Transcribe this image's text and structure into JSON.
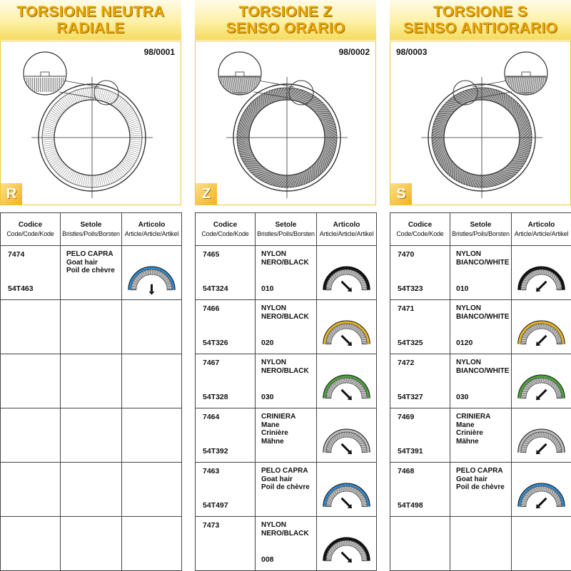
{
  "columns": [
    {
      "title_line1": "TORSIONE NEUTRA",
      "title_line2": "RADIALE",
      "code": "98/0001",
      "letter": "R",
      "diagram": "radial",
      "headers": {
        "codice": "Codice",
        "codice_sub": "Code/Code/Kode",
        "setole": "Setole",
        "setole_sub": "Bristles/Poils/Borsten",
        "articolo": "Articolo",
        "articolo_sub": "Article/Article/Artikel"
      },
      "rows": [
        {
          "code": "7474",
          "code2": "54T463",
          "l1": "PELO CAPRA",
          "l2": "Goat hair",
          "l3": "Poil de chèvre",
          "l4": "",
          "num": "",
          "color": "#2f86c8",
          "arrow": "down"
        },
        {
          "code": "",
          "code2": "",
          "l1": "",
          "l2": "",
          "l3": "",
          "l4": "",
          "num": "",
          "color": "",
          "arrow": ""
        },
        {
          "code": "",
          "code2": "",
          "l1": "",
          "l2": "",
          "l3": "",
          "l4": "",
          "num": "",
          "color": "",
          "arrow": ""
        },
        {
          "code": "",
          "code2": "",
          "l1": "",
          "l2": "",
          "l3": "",
          "l4": "",
          "num": "",
          "color": "",
          "arrow": ""
        },
        {
          "code": "",
          "code2": "",
          "l1": "",
          "l2": "",
          "l3": "",
          "l4": "",
          "num": "",
          "color": "",
          "arrow": ""
        },
        {
          "code": "",
          "code2": "",
          "l1": "",
          "l2": "",
          "l3": "",
          "l4": "",
          "num": "",
          "color": "",
          "arrow": ""
        }
      ]
    },
    {
      "title_line1": "TORSIONE Z",
      "title_line2": "SENSO ORARIO",
      "code": "98/0002",
      "letter": "Z",
      "diagram": "z",
      "headers": {
        "codice": "Codice",
        "codice_sub": "Code/Code/Kode",
        "setole": "Setole",
        "setole_sub": "Bristles/Poils/Borsten",
        "articolo": "Articolo",
        "articolo_sub": "Article/Article/Artikel"
      },
      "rows": [
        {
          "code": "7465",
          "code2": "54T324",
          "l1": "NYLON",
          "l2": "NERO/BLACK",
          "l3": "",
          "l4": "",
          "num": "010",
          "color": "#111111",
          "arrow": "z"
        },
        {
          "code": "7466",
          "code2": "54T326",
          "l1": "NYLON",
          "l2": "NERO/BLACK",
          "l3": "",
          "l4": "",
          "num": "020",
          "color": "#e6b422",
          "arrow": "z"
        },
        {
          "code": "7467",
          "code2": "54T328",
          "l1": "NYLON",
          "l2": "NERO/BLACK",
          "l3": "",
          "l4": "",
          "num": "030",
          "color": "#4aa13a",
          "arrow": "z"
        },
        {
          "code": "7464",
          "code2": "54T392",
          "l1": "CRINIERA",
          "l2": "Mane",
          "l3": "Crinière",
          "l4": "Mähne",
          "num": "",
          "color": "#bbbbbb",
          "arrow": "z"
        },
        {
          "code": "7463",
          "code2": "54T497",
          "l1": "PELO CAPRA",
          "l2": "Goat hair",
          "l3": "Poil de chèvre",
          "l4": "",
          "num": "",
          "color": "#2f86c8",
          "arrow": "z"
        },
        {
          "code": "7473",
          "code2": "",
          "l1": "NYLON",
          "l2": "NERO/BLACK",
          "l3": "",
          "l4": "",
          "num": "008",
          "color": "#111111",
          "arrow": "z"
        }
      ]
    },
    {
      "title_line1": "TORSIONE S",
      "title_line2": "SENSO ANTIORARIO",
      "code": "98/0003",
      "letter": "S",
      "diagram": "s",
      "headers": {
        "codice": "Codice",
        "codice_sub": "Code/Code/Kode",
        "setole": "Setole",
        "setole_sub": "Bristles/Poils/Borsten",
        "articolo": "Articolo",
        "articolo_sub": "Article/Article/Artikel"
      },
      "rows": [
        {
          "code": "7470",
          "code2": "54T323",
          "l1": "NYLON",
          "l2": "BIANCO/WHITE",
          "l3": "",
          "l4": "",
          "num": "010",
          "color": "#111111",
          "arrow": "s"
        },
        {
          "code": "7471",
          "code2": "54T325",
          "l1": "NYLON",
          "l2": "BIANCO/WHITE",
          "l3": "",
          "l4": "",
          "num": "0120",
          "color": "#e6b422",
          "arrow": "s"
        },
        {
          "code": "7472",
          "code2": "54T327",
          "l1": "NYLON",
          "l2": "BIANCO/WHITE",
          "l3": "",
          "l4": "",
          "num": "030",
          "color": "#4aa13a",
          "arrow": "s"
        },
        {
          "code": "7469",
          "code2": "54T391",
          "l1": "CRINIERA",
          "l2": "Mane",
          "l3": "Crinière",
          "l4": "Mähne",
          "num": "",
          "color": "#bbbbbb",
          "arrow": "s"
        },
        {
          "code": "7468",
          "code2": "54T498",
          "l1": "PELO CAPRA",
          "l2": "Goat hair",
          "l3": "Poil de chèvre",
          "l4": "",
          "num": "",
          "color": "#2f86c8",
          "arrow": "s"
        },
        {
          "code": "",
          "code2": "",
          "l1": "",
          "l2": "",
          "l3": "",
          "l4": "",
          "num": "",
          "color": "",
          "arrow": ""
        }
      ]
    }
  ]
}
